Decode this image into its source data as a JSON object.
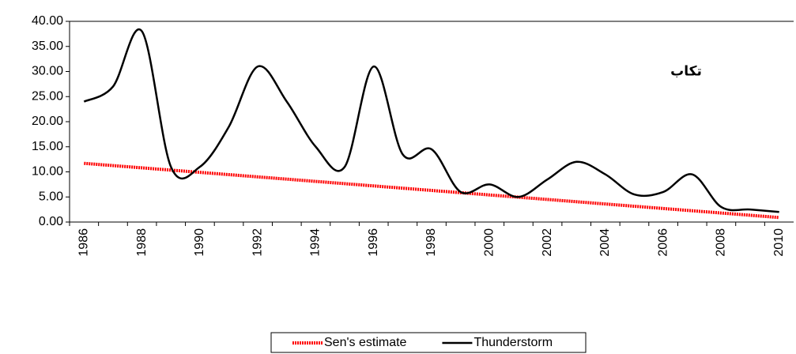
{
  "chart_data": {
    "type": "line",
    "annotation": "تكاب",
    "categories": [
      "1986",
      null,
      "1988",
      null,
      "1990",
      null,
      "1992",
      null,
      "1994",
      null,
      "1996",
      null,
      "1998",
      null,
      "2000",
      null,
      "2002",
      null,
      "2004",
      null,
      "2006",
      null,
      "2008",
      null,
      "2010"
    ],
    "series": [
      {
        "name": "Sen's estimate",
        "color": "#ff0000",
        "values": [
          11.7,
          11.25,
          10.8,
          10.35,
          9.9,
          9.45,
          9.0,
          8.55,
          8.1,
          7.65,
          7.2,
          6.75,
          6.3,
          5.85,
          5.4,
          4.95,
          4.5,
          4.05,
          3.6,
          3.15,
          2.7,
          2.25,
          1.8,
          1.35,
          0.9
        ]
      },
      {
        "name": "Thunderstorm",
        "color": "#000000",
        "values": [
          24,
          27,
          38,
          11,
          11,
          19,
          31,
          24,
          15,
          11,
          31,
          13.5,
          14.5,
          6,
          7.5,
          5,
          8.5,
          12,
          9.5,
          5.5,
          6,
          9.5,
          3,
          2.5,
          2
        ]
      }
    ],
    "ylim": [
      0,
      40
    ],
    "yticks": [
      {
        "value": 0,
        "label": "0.00"
      },
      {
        "value": 5,
        "label": "5.00"
      },
      {
        "value": 10,
        "label": "10.00"
      },
      {
        "value": 15,
        "label": "15.00"
      },
      {
        "value": 20,
        "label": "20.00"
      },
      {
        "value": 25,
        "label": "25.00"
      },
      {
        "value": 30,
        "label": "30.00"
      },
      {
        "value": 35,
        "label": "35.00"
      },
      {
        "value": 40,
        "label": "40.00"
      }
    ]
  }
}
